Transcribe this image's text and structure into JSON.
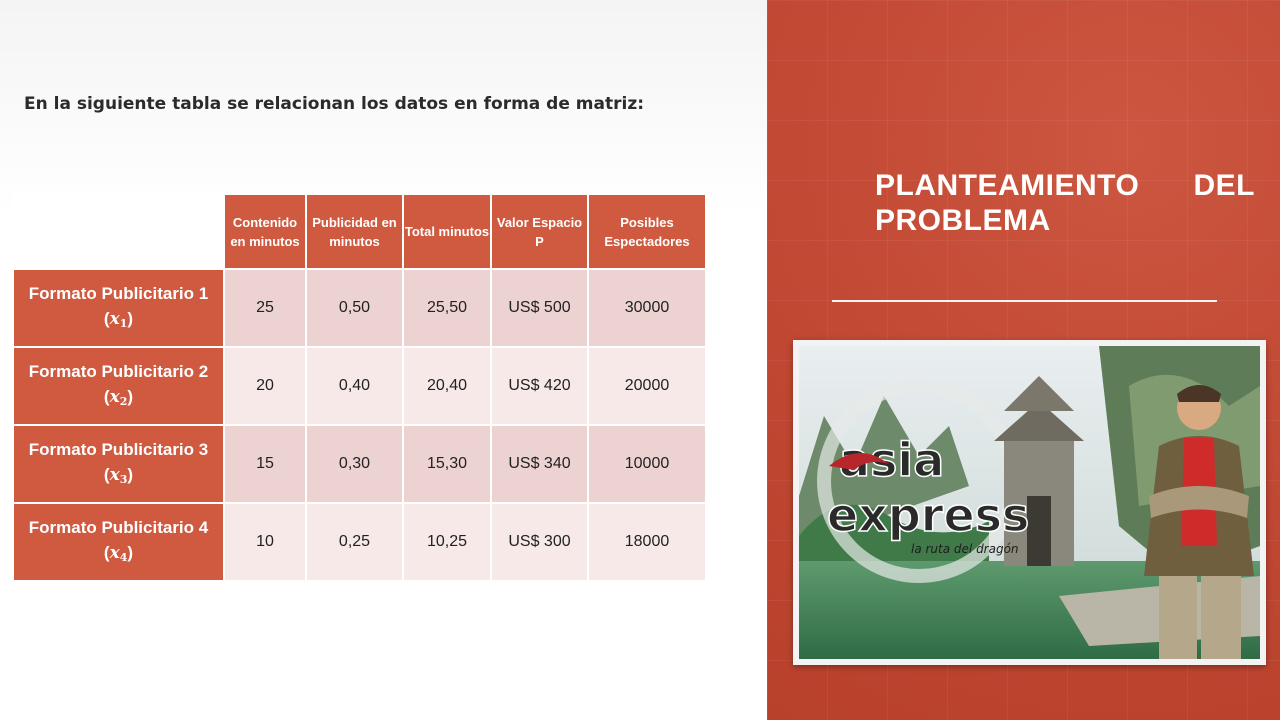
{
  "intro_text": "En la siguiente tabla se relacionan los datos en forma de matriz:",
  "title": "PLANTEAMIENTO DEL PROBLEMA",
  "table": {
    "headers": [
      "Contenido en minutos",
      "Publicidad en minutos",
      "Total minutos",
      "Valor Espacio P",
      "Posibles Espectadores"
    ],
    "rows": [
      {
        "label": "Formato Publicitario 1",
        "var": "x",
        "sub": "1",
        "cells": [
          "25",
          "0,50",
          "25,50",
          "US$ 500",
          "30000"
        ]
      },
      {
        "label": "Formato Publicitario 2",
        "var": "x",
        "sub": "2",
        "cells": [
          "20",
          "0,40",
          "20,40",
          "US$ 420",
          "20000"
        ]
      },
      {
        "label": "Formato Publicitario 3",
        "var": "x",
        "sub": "3",
        "cells": [
          "15",
          "0,30",
          "15,30",
          "US$ 340",
          "10000"
        ]
      },
      {
        "label": "Formato Publicitario 4",
        "var": "x",
        "sub": "4",
        "cells": [
          "10",
          "0,25",
          "10,25",
          "US$ 300",
          "18000"
        ]
      }
    ]
  },
  "photo": {
    "logo_line1": "asia",
    "logo_line2": "express",
    "logo_tagline": "la ruta del dragón"
  },
  "colors": {
    "accent": "#c24a33",
    "header_cell": "#cf5a40",
    "row_odd": "#ecd2d0",
    "row_even": "#f6e9e8"
  }
}
